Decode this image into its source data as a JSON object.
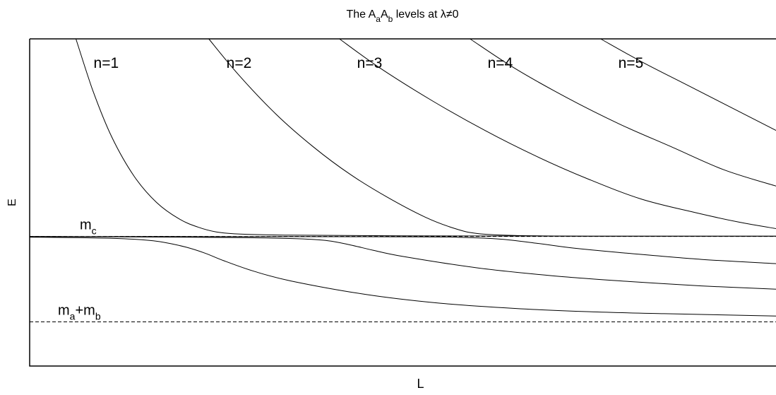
{
  "chart_data": {
    "type": "line",
    "title": {
      "text": "The A_a A_b levels at λ≠0",
      "parts": [
        {
          "t": "The A",
          "sub": false
        },
        {
          "t": "a",
          "sub": true
        },
        {
          "t": "A",
          "sub": false
        },
        {
          "t": "b",
          "sub": true
        },
        {
          "t": " levels at λ≠0",
          "sub": false
        }
      ]
    },
    "xlabel": "L",
    "ylabel": "E",
    "xlim": [
      0,
      1
    ],
    "ylim": [
      0,
      1
    ],
    "grid": false,
    "legend": "none",
    "colors": {
      "line": "#000000",
      "axis": "#000000",
      "background": "#ffffff"
    },
    "reference_lines": [
      {
        "y": 0.396,
        "style": "dashed",
        "label": {
          "parts": [
            {
              "t": "m",
              "sub": false
            },
            {
              "t": "c",
              "sub": true
            }
          ]
        }
      },
      {
        "y": 0.135,
        "style": "dashed",
        "label": {
          "parts": [
            {
              "t": "m",
              "sub": false
            },
            {
              "t": "a",
              "sub": true
            },
            {
              "t": "+m",
              "sub": false
            },
            {
              "t": "b",
              "sub": true
            }
          ]
        }
      }
    ],
    "series": [
      {
        "name": "n=1",
        "x": [
          0.062,
          0.085,
          0.11,
          0.14,
          0.17,
          0.2,
          0.225,
          0.25,
          0.285,
          0.35,
          0.5,
          0.7,
          1.0
        ],
        "y": [
          1.0,
          0.84,
          0.7,
          0.58,
          0.5,
          0.45,
          0.425,
          0.41,
          0.403,
          0.4,
          0.398,
          0.397,
          0.397
        ]
      },
      {
        "name": "n=2",
        "x": [
          0.24,
          0.28,
          0.33,
          0.38,
          0.43,
          0.48,
          0.53,
          0.57,
          0.6,
          0.65,
          0.75,
          1.0
        ],
        "y": [
          1.0,
          0.89,
          0.77,
          0.67,
          0.585,
          0.515,
          0.455,
          0.42,
          0.405,
          0.399,
          0.397,
          0.397
        ]
      },
      {
        "name": "n=3",
        "x": [
          0.415,
          0.47,
          0.54,
          0.61,
          0.68,
          0.75,
          0.82,
          0.89,
          0.95,
          1.0
        ],
        "y": [
          1.0,
          0.91,
          0.81,
          0.72,
          0.64,
          0.57,
          0.51,
          0.47,
          0.44,
          0.42
        ]
      },
      {
        "name": "n=4",
        "x": [
          0.59,
          0.65,
          0.72,
          0.79,
          0.86,
          0.93,
          1.0
        ],
        "y": [
          1.0,
          0.91,
          0.82,
          0.74,
          0.67,
          0.6,
          0.55
        ]
      },
      {
        "name": "n=5",
        "x": [
          0.765,
          0.82,
          0.88,
          0.94,
          1.0
        ],
        "y": [
          1.0,
          0.93,
          0.86,
          0.79,
          0.72
        ]
      },
      {
        "name": "",
        "x": [
          0.0,
          0.1,
          0.15,
          0.18,
          0.21,
          0.235,
          0.26,
          0.3,
          0.35,
          0.45,
          0.55,
          0.65,
          0.75,
          0.85,
          1.0
        ],
        "y": [
          0.394,
          0.391,
          0.386,
          0.378,
          0.363,
          0.345,
          0.322,
          0.29,
          0.26,
          0.219,
          0.192,
          0.176,
          0.166,
          0.16,
          0.153
        ]
      },
      {
        "name": "",
        "x": [
          0.0,
          0.2,
          0.3,
          0.36,
          0.4,
          0.43,
          0.46,
          0.5,
          0.6,
          0.7,
          0.8,
          0.9,
          1.0
        ],
        "y": [
          0.396,
          0.394,
          0.392,
          0.389,
          0.383,
          0.37,
          0.354,
          0.335,
          0.3,
          0.276,
          0.259,
          0.245,
          0.235
        ]
      },
      {
        "name": "",
        "x": [
          0.0,
          0.5,
          0.58,
          0.63,
          0.68,
          0.73,
          0.8,
          0.9,
          1.0
        ],
        "y": [
          0.396,
          0.395,
          0.393,
          0.388,
          0.375,
          0.36,
          0.345,
          0.326,
          0.313
        ]
      }
    ]
  }
}
